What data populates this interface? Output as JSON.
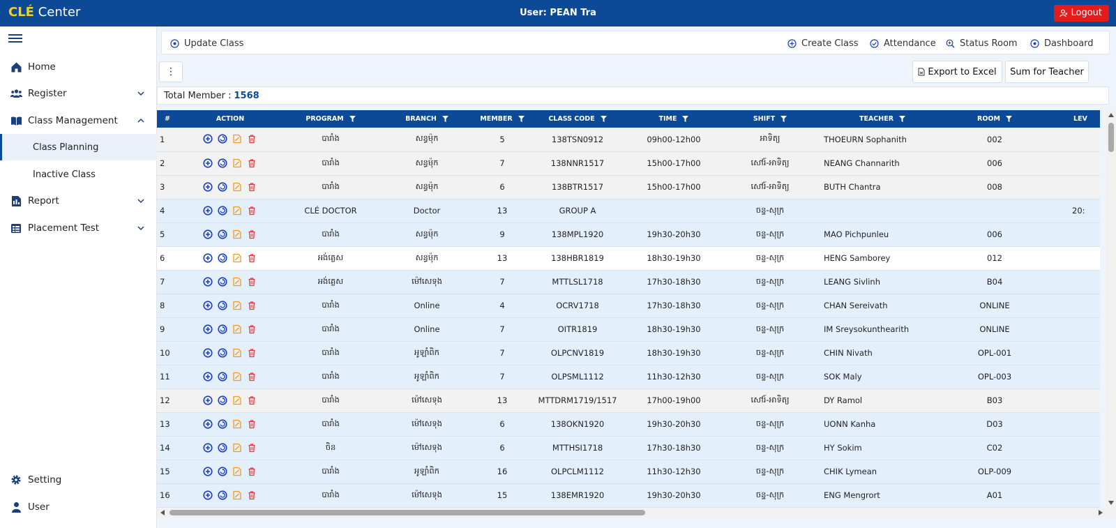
{
  "topbar": {
    "brand_bold": "CLÉ",
    "brand_rest": "Center",
    "user_label": "User: PEAN Tra",
    "logout_label": "Logout"
  },
  "colors": {
    "primary": "#0c4a97",
    "brand_yellow": "#f5d020",
    "logout_red": "#e31b1b",
    "icon_blue": "#1c3fc1",
    "icon_orange": "#f29b1a",
    "icon_red": "#e03b3b"
  },
  "sidebar": {
    "items": [
      {
        "label": "Home",
        "icon": "home-icon"
      },
      {
        "label": "Register",
        "icon": "users-icon"
      },
      {
        "label": "Class Management",
        "icon": "book-icon"
      },
      {
        "label": "Class Planning"
      },
      {
        "label": "Inactive Class"
      },
      {
        "label": "Report",
        "icon": "report-icon"
      },
      {
        "label": "Placement Test",
        "icon": "table-icon"
      },
      {
        "label": "Setting",
        "icon": "gear-icon"
      },
      {
        "label": "User",
        "icon": "user-icon"
      }
    ]
  },
  "action_bar": {
    "update_class": "Update Class",
    "create_class": "Create Class",
    "attendance": "Attendance",
    "status_room": "Status Room",
    "dashboard": "Dashboard"
  },
  "toolbar": {
    "kebab": "⋮",
    "export_label": "Export to Excel",
    "sum_teacher_label": "Sum for Teacher"
  },
  "total": {
    "label": "Total Member :",
    "value": "1568"
  },
  "table": {
    "headers": [
      "#",
      "ACTION",
      "PROGRAM",
      "BRANCH",
      "MEMBER",
      "CLASS CODE",
      "TIME",
      "SHIFT",
      "TEACHER",
      "ROOM",
      "LEV"
    ],
    "rows": [
      {
        "no": "1",
        "program": "បារាំង",
        "branch": "សន្ធម៉ុក",
        "member": "5",
        "code": "138TSN0912",
        "time": "09h00-12h00",
        "shift": "អាទិត្យ",
        "teacher": "THOEURN Sophanith",
        "room": "002",
        "level": "",
        "bg": "grey"
      },
      {
        "no": "2",
        "program": "បារាំង",
        "branch": "សន្ធម៉ុក",
        "member": "7",
        "code": "138NNR1517",
        "time": "15h00-17h00",
        "shift": "សៅរ៍-អាទិត្យ",
        "teacher": "NEANG Channarith",
        "room": "006",
        "level": "",
        "bg": "grey"
      },
      {
        "no": "3",
        "program": "បារាំង",
        "branch": "សន្ធម៉ុក",
        "member": "6",
        "code": "138BTR1517",
        "time": "15h00-17h00",
        "shift": "សៅរ៍-អាទិត្យ",
        "teacher": "BUTH Chantra",
        "room": "008",
        "level": "",
        "bg": "grey"
      },
      {
        "no": "4",
        "program": "CLÉ DOCTOR",
        "branch": "Doctor",
        "member": "13",
        "code": "GROUP A",
        "time": "",
        "shift": "ចន្ទ-សុក្រ",
        "teacher": "",
        "room": "",
        "level": "20:",
        "bg": "blue"
      },
      {
        "no": "5",
        "program": "បារាំង",
        "branch": "សន្ធម៉ុក",
        "member": "9",
        "code": "138MPL1920",
        "time": "19h30-20h30",
        "shift": "ចន្ទ-សុក្រ",
        "teacher": "MAO Pichpunleu",
        "room": "006",
        "level": "",
        "bg": "blue"
      },
      {
        "no": "6",
        "program": "អង់គ្លេស",
        "branch": "សន្ធម៉ុក",
        "member": "13",
        "code": "138HBR1819",
        "time": "18h30-19h30",
        "shift": "ចន្ទ-សុក្រ",
        "teacher": "HENG Samborey",
        "room": "012",
        "level": "",
        "bg": "white"
      },
      {
        "no": "7",
        "program": "អង់គ្លេស",
        "branch": "ម៉ៅសេទុង",
        "member": "7",
        "code": "MTTLSL1718",
        "time": "17h30-18h30",
        "shift": "ចន្ទ-សុក្រ",
        "teacher": "LEANG Sivlinh",
        "room": "B04",
        "level": "",
        "bg": "blue"
      },
      {
        "no": "8",
        "program": "បារាំង",
        "branch": "Online",
        "member": "4",
        "code": "OCRV1718",
        "time": "17h30-18h30",
        "shift": "ចន្ទ-សុក្រ",
        "teacher": "CHAN Sereivath",
        "room": "ONLINE",
        "level": "",
        "bg": "blue"
      },
      {
        "no": "9",
        "program": "បារាំង",
        "branch": "Online",
        "member": "7",
        "code": "OITR1819",
        "time": "18h30-19h30",
        "shift": "ចន្ទ-សុក្រ",
        "teacher": "IM Sreysokunthearith",
        "room": "ONLINE",
        "level": "",
        "bg": "blue"
      },
      {
        "no": "10",
        "program": "បារាំង",
        "branch": "អូឡាំពិក",
        "member": "7",
        "code": "OLPCNV1819",
        "time": "18h30-19h30",
        "shift": "ចន្ទ-សុក្រ",
        "teacher": "CHIN Nivath",
        "room": "OPL-001",
        "level": "",
        "bg": "blue"
      },
      {
        "no": "11",
        "program": "បារាំង",
        "branch": "អូឡាំពិក",
        "member": "7",
        "code": "OLPSML1112",
        "time": "11h30-12h30",
        "shift": "ចន្ទ-សុក្រ",
        "teacher": "SOK Maly",
        "room": "OPL-003",
        "level": "",
        "bg": "blue"
      },
      {
        "no": "12",
        "program": "បារាំង",
        "branch": "ម៉ៅសេទុង",
        "member": "13",
        "code": "MTTDRM1719/1517",
        "time": "17h00-19h00",
        "shift": "សៅរ៍-អាទិត្យ",
        "teacher": "DY Ramol",
        "room": "B03",
        "level": "",
        "bg": "grey"
      },
      {
        "no": "13",
        "program": "បារាំង",
        "branch": "ម៉ៅសេទុង",
        "member": "6",
        "code": "138OKN1920",
        "time": "19h30-20h30",
        "shift": "ចន្ទ-សុក្រ",
        "teacher": "UONN Kanha",
        "room": "D03",
        "level": "",
        "bg": "blue"
      },
      {
        "no": "14",
        "program": "ចិន",
        "branch": "ម៉ៅសេទុង",
        "member": "6",
        "code": "MTTHSI1718",
        "time": "17h30-18h30",
        "shift": "ចន្ទ-សុក្រ",
        "teacher": "HY Sokim",
        "room": "C02",
        "level": "",
        "bg": "blue"
      },
      {
        "no": "15",
        "program": "បារាំង",
        "branch": "អូឡាំពិក",
        "member": "16",
        "code": "OLPCLM1112",
        "time": "11h30-12h30",
        "shift": "ចន្ទ-សុក្រ",
        "teacher": "CHIK Lymean",
        "room": "OLP-009",
        "level": "",
        "bg": "blue"
      },
      {
        "no": "16",
        "program": "បារាំង",
        "branch": "ម៉ៅសេទុង",
        "member": "15",
        "code": "138EMR1920",
        "time": "19h30-20h30",
        "shift": "ចន្ទ-សុក្រ",
        "teacher": "ENG Mengrort",
        "room": "A01",
        "level": "",
        "bg": "blue"
      }
    ]
  }
}
